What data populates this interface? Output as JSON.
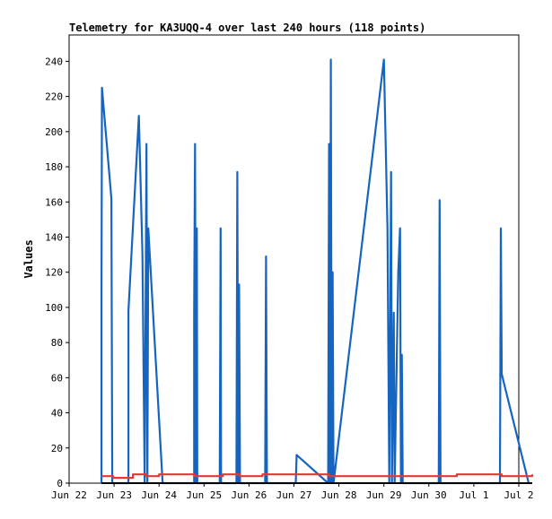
{
  "chart_data": {
    "type": "line",
    "title": "Telemetry for KA3UQQ-4 over last 240 hours (118 points)",
    "xlabel": "",
    "ylabel": "Values",
    "ylim": [
      0,
      255
    ],
    "xlim": [
      "Jun 22",
      "Jul 2"
    ],
    "grid": false,
    "legend": "none",
    "yticks": [
      0,
      20,
      40,
      60,
      80,
      100,
      120,
      140,
      160,
      180,
      200,
      220,
      240
    ],
    "xticks": [
      "Jun 22",
      "Jun 23",
      "Jun 24",
      "Jun 25",
      "Jun 26",
      "Jun 27",
      "Jun 28",
      "Jun 29",
      "Jun 30",
      "Jul 1",
      "Jul 2"
    ],
    "series": [
      {
        "color": "#1565c0",
        "points": [
          [
            0.72,
            0
          ],
          [
            0.72,
            112
          ],
          [
            0.73,
            225
          ],
          [
            0.94,
            162
          ],
          [
            0.95,
            80
          ],
          [
            0.96,
            0
          ],
          [
            1.32,
            0
          ],
          [
            1.32,
            98
          ],
          [
            1.55,
            209
          ],
          [
            1.6,
            160
          ],
          [
            1.63,
            130
          ],
          [
            1.68,
            0
          ],
          [
            1.72,
            193
          ],
          [
            1.74,
            0
          ],
          [
            1.76,
            145
          ],
          [
            2.08,
            0
          ],
          [
            2.78,
            0
          ],
          [
            2.78,
            98
          ],
          [
            2.8,
            193
          ],
          [
            2.82,
            0
          ],
          [
            2.84,
            145
          ],
          [
            2.85,
            0
          ],
          [
            3.35,
            0
          ],
          [
            3.37,
            145
          ],
          [
            3.38,
            0
          ],
          [
            3.72,
            0
          ],
          [
            3.74,
            177
          ],
          [
            3.76,
            0
          ],
          [
            3.78,
            113
          ],
          [
            3.8,
            0
          ],
          [
            4.36,
            0
          ],
          [
            4.38,
            129
          ],
          [
            4.4,
            0
          ],
          [
            5.04,
            0
          ],
          [
            5.06,
            16
          ],
          [
            5.76,
            0
          ],
          [
            5.78,
            193
          ],
          [
            5.8,
            0
          ],
          [
            5.82,
            241
          ],
          [
            5.84,
            0
          ],
          [
            5.86,
            120
          ],
          [
            5.88,
            0
          ],
          [
            7.0,
            241
          ],
          [
            7.08,
            145
          ],
          [
            7.12,
            0
          ],
          [
            7.16,
            177
          ],
          [
            7.18,
            0
          ],
          [
            7.22,
            97
          ],
          [
            7.24,
            0
          ],
          [
            7.32,
            120
          ],
          [
            7.36,
            145
          ],
          [
            7.38,
            0
          ],
          [
            7.4,
            73
          ],
          [
            7.42,
            0
          ],
          [
            8.22,
            0
          ],
          [
            8.24,
            161
          ],
          [
            8.26,
            0
          ],
          [
            9.58,
            0
          ],
          [
            9.6,
            145
          ],
          [
            9.62,
            62
          ],
          [
            10.22,
            0
          ]
        ]
      },
      {
        "color": "#e53935",
        "points": [
          [
            0.72,
            4
          ],
          [
            0.98,
            4
          ],
          [
            0.98,
            3
          ],
          [
            1.42,
            3
          ],
          [
            1.42,
            5
          ],
          [
            1.72,
            5
          ],
          [
            1.72,
            4
          ],
          [
            2.0,
            4
          ],
          [
            2.0,
            5
          ],
          [
            2.78,
            5
          ],
          [
            2.78,
            4
          ],
          [
            3.42,
            4
          ],
          [
            3.42,
            5
          ],
          [
            3.8,
            5
          ],
          [
            3.8,
            4
          ],
          [
            4.3,
            4
          ],
          [
            4.3,
            5
          ],
          [
            5.78,
            5
          ],
          [
            5.78,
            4
          ],
          [
            8.62,
            4
          ],
          [
            8.62,
            5
          ],
          [
            9.62,
            5
          ],
          [
            9.62,
            4
          ],
          [
            10.3,
            4
          ],
          [
            10.3,
            5
          ]
        ]
      },
      {
        "color": "#000000",
        "points": [
          [
            0.72,
            0
          ],
          [
            10.3,
            0
          ]
        ]
      }
    ]
  }
}
